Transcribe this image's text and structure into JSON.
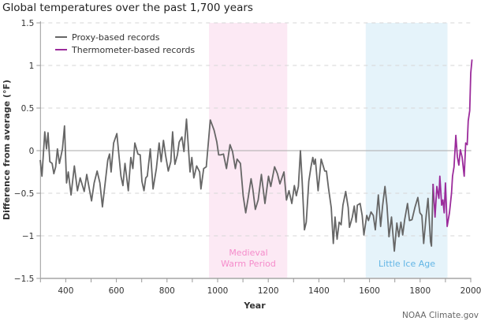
{
  "chart_data": {
    "type": "line",
    "title": "Global temperatures over the past 1,700 years",
    "xlabel": "Year",
    "ylabel": "Difference from average (°F)",
    "xlim": [
      300,
      2005
    ],
    "ylim": [
      -1.5,
      1.5
    ],
    "x_ticks": [
      400,
      600,
      800,
      1000,
      1200,
      1400,
      1600,
      1800,
      2000
    ],
    "y_ticks": [
      1.5,
      1,
      0.5,
      0,
      -0.5,
      -1,
      -1.5
    ],
    "y_tick_labels": [
      "1.5",
      "1",
      "0.5",
      "0",
      "−0.5",
      "−1",
      "−1.5"
    ],
    "grid": "horizontal dashed",
    "legend_position": "top-left",
    "credit": "NOAA Climate.gov",
    "periods": [
      {
        "label_line1": "Medieval",
        "label_line2": "Warm Period",
        "start": 966,
        "end": 1275,
        "fill": "#fce9f4",
        "text_color": "#f58ccb"
      },
      {
        "label_line1": "Little Ice Age",
        "label_line2": "",
        "start": 1585,
        "end": 1908,
        "fill": "#e5f3fa",
        "text_color": "#62b5e5"
      }
    ],
    "series": [
      {
        "name": "Proxy-based records",
        "color": "#666666",
        "points": [
          [
            299,
            -0.11
          ],
          [
            306,
            -0.3
          ],
          [
            317,
            0.22
          ],
          [
            324,
            0.02
          ],
          [
            330,
            0.21
          ],
          [
            337,
            -0.13
          ],
          [
            346,
            -0.15
          ],
          [
            353,
            -0.27
          ],
          [
            360,
            -0.19
          ],
          [
            367,
            0.02
          ],
          [
            375,
            -0.15
          ],
          [
            387,
            0.02
          ],
          [
            395,
            0.29
          ],
          [
            403,
            -0.38
          ],
          [
            410,
            -0.25
          ],
          [
            421,
            -0.52
          ],
          [
            434,
            -0.18
          ],
          [
            446,
            -0.47
          ],
          [
            457,
            -0.32
          ],
          [
            467,
            -0.42
          ],
          [
            473,
            -0.48
          ],
          [
            483,
            -0.28
          ],
          [
            493,
            -0.45
          ],
          [
            502,
            -0.59
          ],
          [
            512,
            -0.38
          ],
          [
            524,
            -0.24
          ],
          [
            535,
            -0.38
          ],
          [
            545,
            -0.66
          ],
          [
            566,
            -0.11
          ],
          [
            573,
            -0.04
          ],
          [
            579,
            -0.25
          ],
          [
            589,
            0.09
          ],
          [
            602,
            0.2
          ],
          [
            618,
            -0.3
          ],
          [
            626,
            -0.41
          ],
          [
            634,
            -0.15
          ],
          [
            647,
            -0.47
          ],
          [
            657,
            -0.08
          ],
          [
            665,
            -0.21
          ],
          [
            673,
            0.09
          ],
          [
            685,
            -0.04
          ],
          [
            694,
            -0.05
          ],
          [
            701,
            -0.36
          ],
          [
            709,
            -0.47
          ],
          [
            716,
            -0.32
          ],
          [
            722,
            -0.3
          ],
          [
            734,
            0.02
          ],
          [
            745,
            -0.45
          ],
          [
            758,
            -0.21
          ],
          [
            769,
            0.09
          ],
          [
            777,
            -0.13
          ],
          [
            786,
            0.12
          ],
          [
            794,
            -0.05
          ],
          [
            805,
            -0.24
          ],
          [
            815,
            -0.13
          ],
          [
            822,
            0.22
          ],
          [
            831,
            -0.16
          ],
          [
            841,
            -0.05
          ],
          [
            848,
            0.1
          ],
          [
            859,
            0.16
          ],
          [
            867,
            -0.01
          ],
          [
            877,
            0.37
          ],
          [
            891,
            -0.25
          ],
          [
            898,
            -0.08
          ],
          [
            906,
            -0.32
          ],
          [
            917,
            -0.18
          ],
          [
            929,
            -0.25
          ],
          [
            934,
            -0.45
          ],
          [
            945,
            -0.21
          ],
          [
            955,
            -0.19
          ],
          [
            971,
            0.36
          ],
          [
            986,
            0.24
          ],
          [
            997,
            0.1
          ],
          [
            1004,
            -0.05
          ],
          [
            1012,
            -0.05
          ],
          [
            1023,
            -0.04
          ],
          [
            1035,
            -0.21
          ],
          [
            1049,
            0.07
          ],
          [
            1059,
            -0.01
          ],
          [
            1070,
            -0.21
          ],
          [
            1077,
            -0.1
          ],
          [
            1090,
            -0.15
          ],
          [
            1101,
            -0.53
          ],
          [
            1111,
            -0.73
          ],
          [
            1121,
            -0.55
          ],
          [
            1132,
            -0.33
          ],
          [
            1139,
            -0.45
          ],
          [
            1149,
            -0.69
          ],
          [
            1160,
            -0.58
          ],
          [
            1173,
            -0.28
          ],
          [
            1187,
            -0.62
          ],
          [
            1201,
            -0.3
          ],
          [
            1210,
            -0.42
          ],
          [
            1225,
            -0.19
          ],
          [
            1236,
            -0.27
          ],
          [
            1246,
            -0.39
          ],
          [
            1262,
            -0.25
          ],
          [
            1272,
            -0.58
          ],
          [
            1282,
            -0.47
          ],
          [
            1293,
            -0.62
          ],
          [
            1303,
            -0.41
          ],
          [
            1311,
            -0.53
          ],
          [
            1319,
            -0.42
          ],
          [
            1327,
            0.0
          ],
          [
            1334,
            -0.36
          ],
          [
            1343,
            -0.93
          ],
          [
            1350,
            -0.84
          ],
          [
            1360,
            -0.36
          ],
          [
            1369,
            -0.19
          ],
          [
            1376,
            -0.08
          ],
          [
            1381,
            -0.16
          ],
          [
            1386,
            -0.1
          ],
          [
            1397,
            -0.47
          ],
          [
            1409,
            -0.1
          ],
          [
            1423,
            -0.24
          ],
          [
            1430,
            -0.24
          ],
          [
            1438,
            -0.44
          ],
          [
            1449,
            -0.67
          ],
          [
            1457,
            -1.09
          ],
          [
            1464,
            -0.78
          ],
          [
            1472,
            -1.04
          ],
          [
            1480,
            -0.84
          ],
          [
            1488,
            -0.87
          ],
          [
            1495,
            -0.64
          ],
          [
            1506,
            -0.48
          ],
          [
            1516,
            -0.67
          ],
          [
            1521,
            -0.9
          ],
          [
            1532,
            -0.78
          ],
          [
            1540,
            -0.65
          ],
          [
            1547,
            -0.84
          ],
          [
            1552,
            -0.64
          ],
          [
            1563,
            -0.62
          ],
          [
            1571,
            -0.76
          ],
          [
            1578,
            -0.99
          ],
          [
            1589,
            -0.76
          ],
          [
            1596,
            -0.82
          ],
          [
            1606,
            -0.72
          ],
          [
            1615,
            -0.76
          ],
          [
            1623,
            -0.93
          ],
          [
            1635,
            -0.52
          ],
          [
            1644,
            -0.89
          ],
          [
            1652,
            -0.64
          ],
          [
            1661,
            -0.42
          ],
          [
            1669,
            -0.64
          ],
          [
            1677,
            -1.01
          ],
          [
            1687,
            -0.78
          ],
          [
            1698,
            -1.18
          ],
          [
            1708,
            -0.85
          ],
          [
            1716,
            -1.01
          ],
          [
            1724,
            -0.84
          ],
          [
            1731,
            -0.99
          ],
          [
            1739,
            -0.81
          ],
          [
            1750,
            -0.62
          ],
          [
            1758,
            -0.82
          ],
          [
            1768,
            -0.81
          ],
          [
            1779,
            -0.67
          ],
          [
            1791,
            -0.55
          ],
          [
            1799,
            -0.73
          ],
          [
            1807,
            -0.76
          ],
          [
            1814,
            -1.09
          ],
          [
            1824,
            -0.76
          ],
          [
            1831,
            -0.56
          ],
          [
            1841,
            -1.07
          ],
          [
            1845,
            -1.12
          ],
          [
            1851,
            -0.39
          ]
        ]
      },
      {
        "name": "Thermometer-based records",
        "color": "#9b2b9b",
        "points": [
          [
            1851,
            -0.39
          ],
          [
            1859,
            -0.78
          ],
          [
            1866,
            -0.42
          ],
          [
            1874,
            -0.56
          ],
          [
            1878,
            -0.3
          ],
          [
            1885,
            -0.64
          ],
          [
            1890,
            -0.58
          ],
          [
            1895,
            -0.73
          ],
          [
            1900,
            -0.38
          ],
          [
            1907,
            -0.89
          ],
          [
            1916,
            -0.73
          ],
          [
            1924,
            -0.5
          ],
          [
            1928,
            -0.3
          ],
          [
            1934,
            -0.19
          ],
          [
            1941,
            0.18
          ],
          [
            1947,
            -0.07
          ],
          [
            1953,
            -0.17
          ],
          [
            1959,
            0.01
          ],
          [
            1966,
            -0.08
          ],
          [
            1974,
            -0.3
          ],
          [
            1980,
            0.09
          ],
          [
            1986,
            0.07
          ],
          [
            1990,
            0.35
          ],
          [
            1996,
            0.47
          ],
          [
            2000,
            0.91
          ],
          [
            2005,
            1.07
          ]
        ]
      }
    ]
  }
}
